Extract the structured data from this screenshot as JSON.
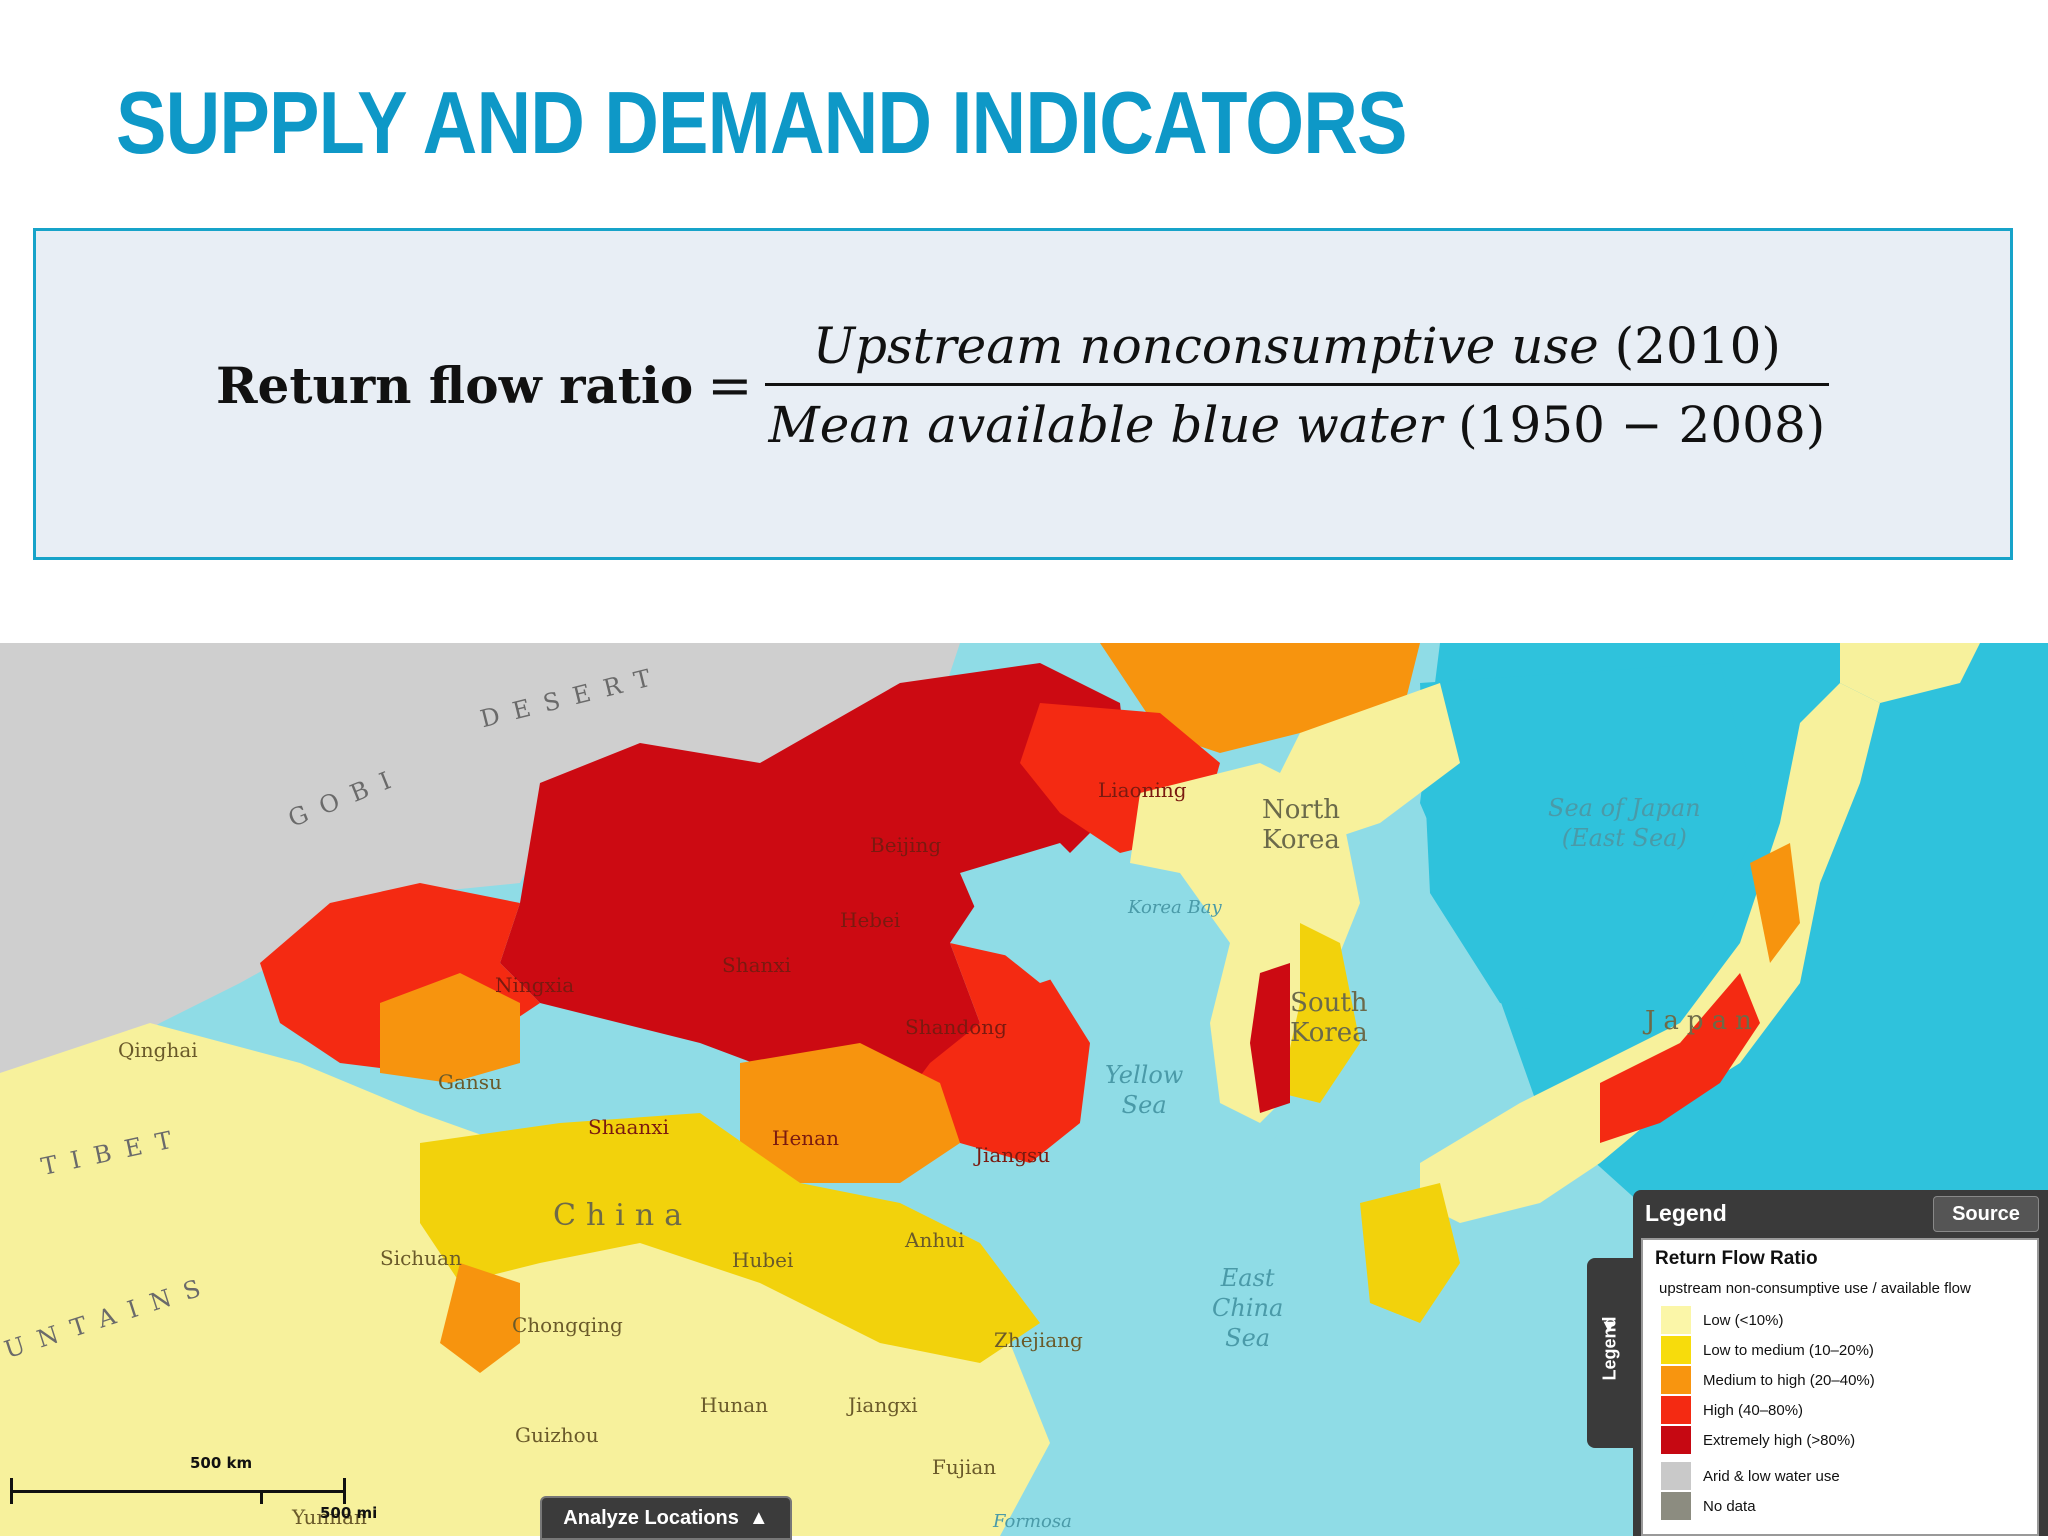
{
  "slide": {
    "title": "SUPPLY AND DEMAND INDICATORS"
  },
  "formula": {
    "lhs": "Return flow ratio",
    "equals": "=",
    "numerator_text": "Upstream nonconsumptive use",
    "numerator_year": "(2010)",
    "denominator_text": "Mean available blue water",
    "denominator_years": "(1950 − 2008)"
  },
  "map": {
    "colors": {
      "sea": "#8fdce6",
      "deep_sea": "#2fc2dc",
      "desert_gray": "#cfcfcf",
      "low": "#f7f19c",
      "low_medium": "#f2d20c",
      "medium_high": "#f7940e",
      "high": "#f42a12",
      "extremely_high": "#cc0a12",
      "arid": "#cdcdcd",
      "no_data": "#8c8c80"
    },
    "labels": {
      "gobi": "GOBI",
      "desert": "DESERT",
      "tibet": "TIBET",
      "mountains": "UNTAINS",
      "qinghai": "Qinghai",
      "gansu": "Gansu",
      "ningxia": "Ningxia",
      "shaanxi": "Shaanxi",
      "shanxi": "Shanxi",
      "hebei": "Hebei",
      "beijing": "Beijing",
      "liaoning": "Liaoning",
      "shandong": "Shandong",
      "henan": "Henan",
      "jiangsu": "Jiangsu",
      "anhui": "Anhui",
      "hubei": "Hubei",
      "sichuan": "Sichuan",
      "chongqing": "Chongqing",
      "zhejiang": "Zhejiang",
      "hunan": "Hunan",
      "jiangxi": "Jiangxi",
      "guizhou": "Guizhou",
      "fujian": "Fujian",
      "yunnan": "Yunnan",
      "china": "China",
      "north_korea_1": "North",
      "north_korea_2": "Korea",
      "south_korea_1": "South",
      "south_korea_2": "Korea",
      "japan": "Japan",
      "korea_bay": "Korea Bay",
      "sea_of_japan_1": "Sea of Japan",
      "sea_of_japan_2": "(East Sea)",
      "yellow_sea_1": "Yellow",
      "yellow_sea_2": "Sea",
      "east_china_sea_1": "East",
      "east_china_sea_2": "China",
      "east_china_sea_3": "Sea",
      "formosa": "Formosa"
    },
    "scale": {
      "km": "500 km",
      "mi": "500 mi"
    },
    "analyze_label": "Analyze Locations",
    "legend_tab_label": "Legend",
    "legend": {
      "header": "Legend",
      "source_label": "Source",
      "title": "Return Flow Ratio",
      "subtitle": "upstream non-consumptive use / available flow",
      "items": [
        {
          "label": "Low (<10%)",
          "color": "#fbf6a8"
        },
        {
          "label": "Low to medium (10–20%)",
          "color": "#f7dc0c"
        },
        {
          "label": "Medium to high (20–40%)",
          "color": "#f8950f"
        },
        {
          "label": "High (40–80%)",
          "color": "#f42a12"
        },
        {
          "label": "Extremely high (>80%)",
          "color": "#c60812"
        },
        {
          "label": "Arid & low water use",
          "color": "#c9c9c9"
        },
        {
          "label": "No data",
          "color": "#8c8c80"
        }
      ]
    }
  }
}
